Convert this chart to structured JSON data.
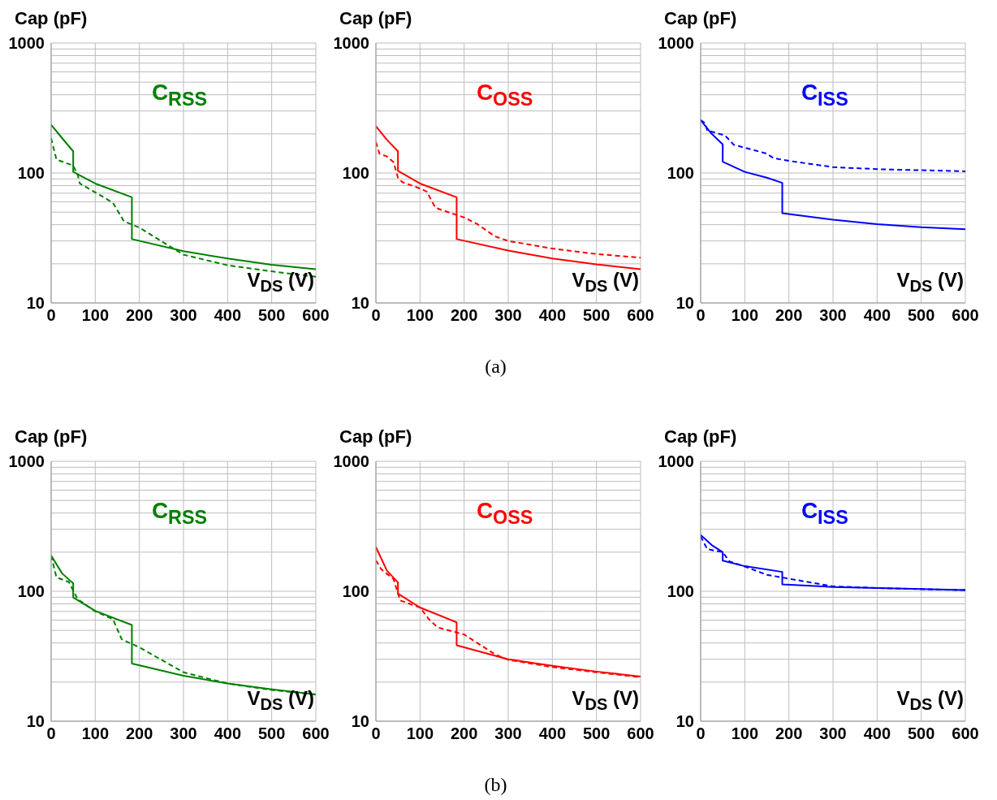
{
  "chart_data": [
    {
      "type": "line",
      "title": "C$_{RSS}$",
      "xlabel": "V$_{DS}$ (V)",
      "ylabel": "Cap (pF)",
      "log": "y",
      "grid": true,
      "xlim": [
        0,
        600
      ],
      "xticks": [
        0,
        100,
        200,
        300,
        400,
        500,
        600
      ],
      "ylim": [
        10,
        1000
      ],
      "yticks": [
        10,
        {
          "value": 20,
          "label": null
        },
        {
          "value": 30,
          "label": null
        },
        {
          "value": 40,
          "label": null
        },
        {
          "value": 50,
          "label": null
        },
        {
          "value": 60,
          "label": null
        },
        {
          "value": 70,
          "label": null
        },
        {
          "value": 80,
          "label": null
        },
        {
          "value": 90,
          "label": null
        },
        100,
        {
          "value": 200,
          "label": null
        },
        {
          "value": 300,
          "label": null
        },
        {
          "value": 400,
          "label": null
        },
        {
          "value": 500,
          "label": null
        },
        {
          "value": 600,
          "label": null
        },
        {
          "value": 700,
          "label": null
        },
        {
          "value": 800,
          "label": null
        },
        {
          "value": 900,
          "label": null
        },
        1000
      ],
      "series": [
        {
          "color": "#008000",
          "line_style": "solid",
          "x": [
            0,
            25,
            50,
            50,
            100,
            183,
            183,
            300,
            400,
            500,
            600
          ],
          "values": [
            235,
            185,
            147,
            102,
            83,
            65,
            31,
            25,
            22,
            19.7,
            18.2
          ]
        },
        {
          "color": "#008000",
          "line_style": "dashed",
          "x": [
            0,
            12,
            50,
            60,
            65,
            100,
            140,
            165,
            200,
            300,
            400,
            500,
            600
          ],
          "values": [
            185,
            127,
            114,
            97,
            83,
            71,
            59,
            42.5,
            38,
            23.5,
            19.5,
            17.5,
            15.9
          ]
        }
      ]
    },
    {
      "type": "line",
      "title": "C$_{OSS}$",
      "xlabel": "V$_{DS}$ (V)",
      "ylabel": "Cap (pF)",
      "log": "y",
      "grid": true,
      "xlim": [
        0,
        600
      ],
      "xticks": [
        0,
        100,
        200,
        300,
        400,
        500,
        600
      ],
      "ylim": [
        10,
        1000
      ],
      "yticks": [
        10,
        {
          "value": 20,
          "label": null
        },
        {
          "value": 30,
          "label": null
        },
        {
          "value": 40,
          "label": null
        },
        {
          "value": 50,
          "label": null
        },
        {
          "value": 60,
          "label": null
        },
        {
          "value": 70,
          "label": null
        },
        {
          "value": 80,
          "label": null
        },
        {
          "value": 90,
          "label": null
        },
        100,
        {
          "value": 200,
          "label": null
        },
        {
          "value": 300,
          "label": null
        },
        {
          "value": 400,
          "label": null
        },
        {
          "value": 500,
          "label": null
        },
        {
          "value": 600,
          "label": null
        },
        {
          "value": 700,
          "label": null
        },
        {
          "value": 800,
          "label": null
        },
        {
          "value": 900,
          "label": null
        },
        1000
      ],
      "annotations": [
        "(a)"
      ],
      "series": [
        {
          "color": "#ff0000",
          "line_style": "solid",
          "x": [
            0,
            25,
            50,
            50,
            100,
            183,
            183,
            300,
            400,
            500,
            600
          ],
          "values": [
            229,
            180,
            147,
            104,
            83,
            65,
            31,
            25.3,
            22,
            19.8,
            18.2
          ]
        },
        {
          "color": "#ff0000",
          "line_style": "dashed",
          "x": [
            0,
            8,
            25,
            40,
            50,
            60,
            100,
            115,
            135,
            175,
            200,
            230,
            270,
            300,
            400,
            500,
            600
          ],
          "values": [
            173,
            141,
            134,
            121,
            92,
            85,
            76,
            72,
            54,
            48.5,
            45.5,
            40.4,
            32.5,
            30,
            26.2,
            23.8,
            22.3
          ]
        }
      ]
    },
    {
      "type": "line",
      "title": "C$_{ISS}$",
      "xlabel": "V$_{DS}$ (V)",
      "ylabel": "Cap (pF)",
      "log": "y",
      "grid": true,
      "xlim": [
        0,
        600
      ],
      "xticks": [
        0,
        100,
        200,
        300,
        400,
        500,
        600
      ],
      "ylim": [
        10,
        1000
      ],
      "yticks": [
        10,
        {
          "value": 20,
          "label": null
        },
        {
          "value": 30,
          "label": null
        },
        {
          "value": 40,
          "label": null
        },
        {
          "value": 50,
          "label": null
        },
        {
          "value": 60,
          "label": null
        },
        {
          "value": 70,
          "label": null
        },
        {
          "value": 80,
          "label": null
        },
        {
          "value": 90,
          "label": null
        },
        100,
        {
          "value": 200,
          "label": null
        },
        {
          "value": 300,
          "label": null
        },
        {
          "value": 400,
          "label": null
        },
        {
          "value": 500,
          "label": null
        },
        {
          "value": 600,
          "label": null
        },
        {
          "value": 700,
          "label": null
        },
        {
          "value": 800,
          "label": null
        },
        {
          "value": 900,
          "label": null
        },
        1000
      ],
      "series": [
        {
          "color": "#0000ff",
          "line_style": "solid",
          "x": [
            0,
            25,
            50,
            50,
            100,
            150,
            185,
            185,
            300,
            400,
            500,
            600
          ],
          "values": [
            255,
            200,
            166,
            122,
            102,
            92,
            84,
            49,
            43.7,
            40.4,
            38.2,
            36.9
          ]
        },
        {
          "color": "#0000ff",
          "line_style": "dashed",
          "x": [
            0,
            10,
            15,
            55,
            75,
            150,
            165,
            200,
            300,
            400,
            500,
            600
          ],
          "values": [
            255,
            242,
            212,
            195,
            165,
            141,
            130,
            124,
            111,
            107,
            105,
            103
          ]
        }
      ]
    },
    {
      "type": "line",
      "title": "C$_{RSS}$",
      "xlabel": "V$_{DS}$ (V)",
      "ylabel": "Cap (pF)",
      "log": "y",
      "grid": true,
      "xlim": [
        0,
        600
      ],
      "xticks": [
        0,
        100,
        200,
        300,
        400,
        500,
        600
      ],
      "ylim": [
        10,
        1000
      ],
      "yticks": [
        10,
        {
          "value": 20,
          "label": null
        },
        {
          "value": 30,
          "label": null
        },
        {
          "value": 40,
          "label": null
        },
        {
          "value": 50,
          "label": null
        },
        {
          "value": 60,
          "label": null
        },
        {
          "value": 70,
          "label": null
        },
        {
          "value": 80,
          "label": null
        },
        {
          "value": 90,
          "label": null
        },
        100,
        {
          "value": 200,
          "label": null
        },
        {
          "value": 300,
          "label": null
        },
        {
          "value": 400,
          "label": null
        },
        {
          "value": 500,
          "label": null
        },
        {
          "value": 600,
          "label": null
        },
        {
          "value": 700,
          "label": null
        },
        {
          "value": 800,
          "label": null
        },
        {
          "value": 900,
          "label": null
        },
        1000
      ],
      "series": [
        {
          "color": "#008000",
          "line_style": "solid",
          "x": [
            0,
            25,
            50,
            50,
            100,
            183,
            183,
            300,
            400,
            500,
            600
          ],
          "values": [
            188,
            137,
            115,
            89.5,
            70.6,
            55,
            27.8,
            22.4,
            19.5,
            17.6,
            16.1
          ]
        },
        {
          "color": "#008000",
          "line_style": "dashed",
          "x": [
            0,
            12,
            40,
            60,
            100,
            140,
            160,
            200,
            300,
            400,
            500,
            600
          ],
          "values": [
            188,
            128,
            118,
            87,
            70,
            61,
            42.7,
            37,
            23.8,
            19.5,
            17.4,
            16
          ]
        }
      ]
    },
    {
      "type": "line",
      "title": "C$_{OSS}$",
      "xlabel": "V$_{DS}$ (V)",
      "ylabel": "Cap (pF)",
      "log": "y",
      "grid": true,
      "xlim": [
        0,
        600
      ],
      "xticks": [
        0,
        100,
        200,
        300,
        400,
        500,
        600
      ],
      "ylim": [
        10,
        1000
      ],
      "yticks": [
        10,
        {
          "value": 20,
          "label": null
        },
        {
          "value": 30,
          "label": null
        },
        {
          "value": 40,
          "label": null
        },
        {
          "value": 50,
          "label": null
        },
        {
          "value": 60,
          "label": null
        },
        {
          "value": 70,
          "label": null
        },
        {
          "value": 80,
          "label": null
        },
        {
          "value": 90,
          "label": null
        },
        100,
        {
          "value": 200,
          "label": null
        },
        {
          "value": 300,
          "label": null
        },
        {
          "value": 400,
          "label": null
        },
        {
          "value": 500,
          "label": null
        },
        {
          "value": 600,
          "label": null
        },
        {
          "value": 700,
          "label": null
        },
        {
          "value": 800,
          "label": null
        },
        {
          "value": 900,
          "label": null
        },
        1000
      ],
      "annotations": [
        "(b)"
      ],
      "series": [
        {
          "color": "#ff0000",
          "line_style": "solid",
          "x": [
            0,
            25,
            50,
            50,
            100,
            183,
            183,
            300,
            400,
            500,
            600
          ],
          "values": [
            219,
            144,
            117,
            96,
            75,
            57.7,
            38.4,
            30,
            26.7,
            24.1,
            22.1
          ]
        },
        {
          "color": "#ff0000",
          "line_style": "dashed",
          "x": [
            0,
            12,
            40,
            55,
            100,
            120,
            140,
            200,
            270,
            300,
            400,
            500,
            600
          ],
          "values": [
            173,
            148,
            124,
            85,
            75,
            61,
            52.7,
            46.5,
            32.7,
            29.7,
            26.1,
            23.8,
            21.8
          ]
        }
      ]
    },
    {
      "type": "line",
      "title": "C$_{ISS}$",
      "xlabel": "V$_{DS}$ (V)",
      "ylabel": "Cap (pF)",
      "log": "y",
      "grid": true,
      "xlim": [
        0,
        600
      ],
      "xticks": [
        0,
        100,
        200,
        300,
        400,
        500,
        600
      ],
      "ylim": [
        10,
        1000
      ],
      "yticks": [
        10,
        {
          "value": 20,
          "label": null
        },
        {
          "value": 30,
          "label": null
        },
        {
          "value": 40,
          "label": null
        },
        {
          "value": 50,
          "label": null
        },
        {
          "value": 60,
          "label": null
        },
        {
          "value": 70,
          "label": null
        },
        {
          "value": 80,
          "label": null
        },
        {
          "value": 90,
          "label": null
        },
        100,
        {
          "value": 200,
          "label": null
        },
        {
          "value": 300,
          "label": null
        },
        {
          "value": 400,
          "label": null
        },
        {
          "value": 500,
          "label": null
        },
        {
          "value": 600,
          "label": null
        },
        {
          "value": 700,
          "label": null
        },
        {
          "value": 800,
          "label": null
        },
        {
          "value": 900,
          "label": null
        },
        1000
      ],
      "series": [
        {
          "color": "#0000ff",
          "line_style": "solid",
          "x": [
            0,
            25,
            50,
            50,
            100,
            185,
            185,
            300,
            400,
            500,
            600
          ],
          "values": [
            271,
            227,
            200,
            172,
            156,
            141,
            113,
            108,
            106,
            104,
            102
          ]
        },
        {
          "color": "#0000ff",
          "line_style": "dashed",
          "x": [
            0,
            15,
            50,
            65,
            100,
            150,
            200,
            300,
            400,
            600
          ],
          "values": [
            265,
            211,
            200,
            170,
            155,
            134,
            125,
            109,
            106,
            102
          ]
        }
      ]
    }
  ]
}
